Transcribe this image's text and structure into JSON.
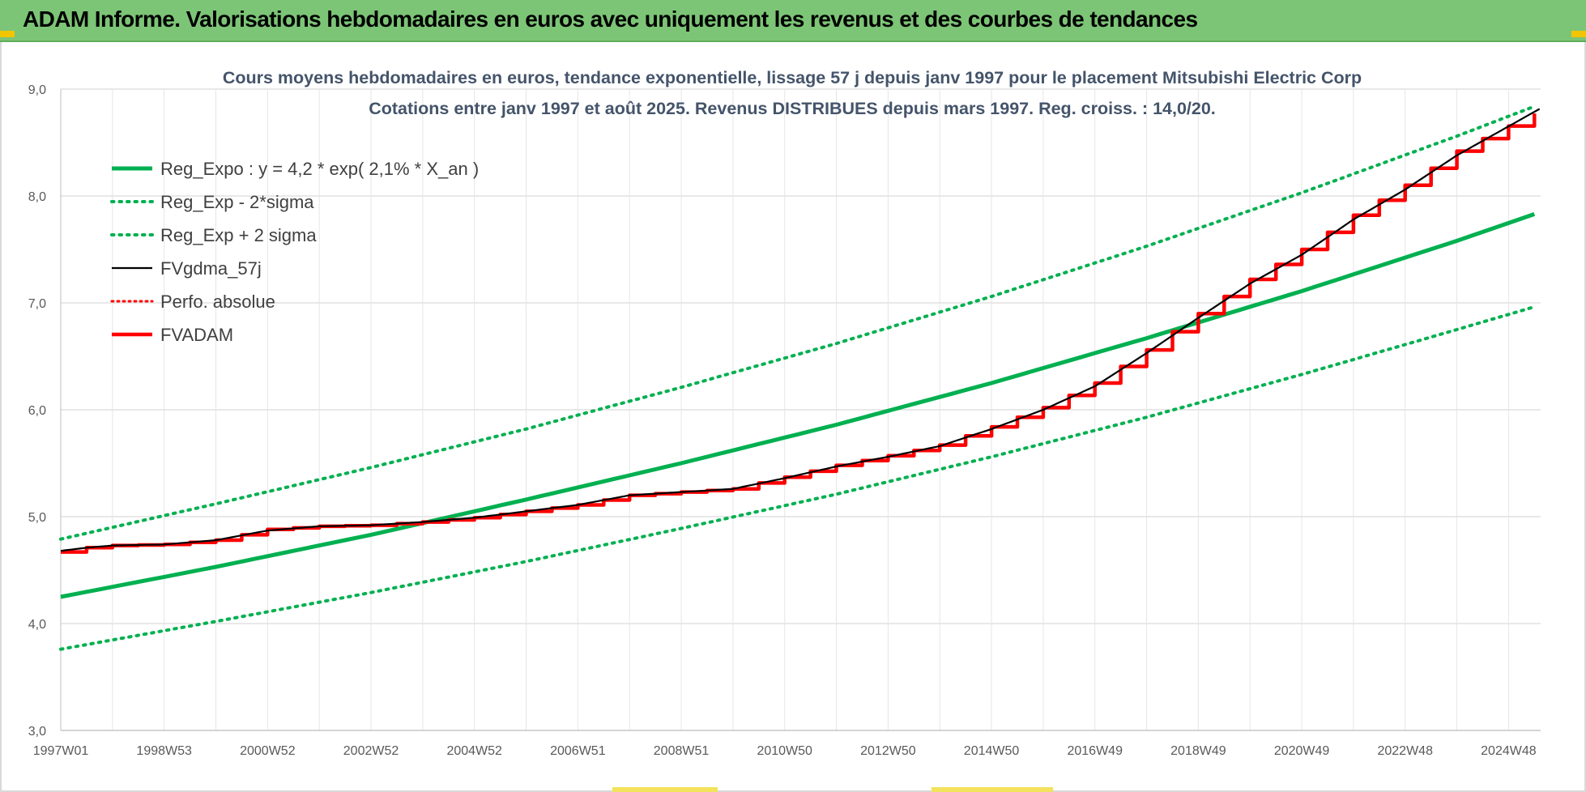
{
  "header": {
    "title": "ADAM Informe. Valorisations hebdomadaires en euros avec uniquement les revenus et des courbes de tendances"
  },
  "colors": {
    "banner": "#7cc576",
    "trend": "#00b050",
    "fv": "#000000",
    "adam": "#ff0000",
    "grid": "#d9d9d9",
    "title": "#44546a",
    "accent": "#f2c500"
  },
  "chart_data": {
    "type": "line",
    "title": "Cours moyens hebdomadaires en euros, tendance exponentielle, lissage 57 j depuis janv 1997 pour le placement Mitsubishi Electric Corp",
    "subtitle": "Cotations entre janv 1997 et août 2025. Revenus DISTRIBUES depuis mars 1997. Reg. croiss. : 14,0/20.",
    "xlabel": "",
    "ylabel": "",
    "x_range": [
      1997.0,
      2025.62
    ],
    "ylim": [
      3.0,
      9.0
    ],
    "y_ticks": [
      "3,0",
      "4,0",
      "5,0",
      "6,0",
      "7,0",
      "8,0",
      "9,0"
    ],
    "x_tick_labels": [
      "1997W01",
      "1998W53",
      "2000W52",
      "2002W52",
      "2004W52",
      "2006W51",
      "2008W51",
      "2010W50",
      "2012W50",
      "2014W50",
      "2016W49",
      "2018W49",
      "2020W49",
      "2022W48",
      "2024W48"
    ],
    "x_tick_years": [
      1997.0,
      1999.0,
      2001.0,
      2003.0,
      2005.0,
      2007.0,
      2009.0,
      2011.0,
      2013.0,
      2015.0,
      2017.0,
      2019.0,
      2021.0,
      2023.0,
      2025.0
    ],
    "grid": true,
    "legend_position": "top-left",
    "series": [
      {
        "name": "Reg_Expo : y = 4,2 * exp( 2,1% *  X_an )",
        "style": "solid-green",
        "x": [
          1997.0,
          2000.0,
          2003.0,
          2006.0,
          2009.0,
          2012.0,
          2015.0,
          2018.0,
          2021.0,
          2024.0,
          2025.62
        ],
        "values": [
          4.25,
          4.53,
          4.83,
          5.16,
          5.5,
          5.86,
          6.25,
          6.67,
          7.11,
          7.58,
          7.85
        ]
      },
      {
        "name": "Reg_Exp - 2*sigma",
        "style": "dotted-green",
        "x": [
          1997.0,
          2000.0,
          2003.0,
          2006.0,
          2009.0,
          2012.0,
          2015.0,
          2018.0,
          2021.0,
          2024.0,
          2025.62
        ],
        "values": [
          3.76,
          4.02,
          4.29,
          4.58,
          4.89,
          5.21,
          5.56,
          5.93,
          6.33,
          6.75,
          6.98
        ]
      },
      {
        "name": "Reg_Exp + 2 sigma",
        "style": "dotted-green",
        "x": [
          1997.0,
          2000.0,
          2003.0,
          2006.0,
          2009.0,
          2012.0,
          2015.0,
          2018.0,
          2021.0,
          2024.0,
          2025.62
        ],
        "values": [
          4.79,
          5.12,
          5.46,
          5.82,
          6.21,
          6.62,
          7.06,
          7.53,
          8.03,
          8.56,
          8.86
        ]
      },
      {
        "name": "FVgdma_57j",
        "style": "solid-black",
        "x": [
          1997.0,
          1997.5,
          1998.0,
          1999.0,
          2000.0,
          2001.0,
          2002.0,
          2003.0,
          2004.0,
          2005.0,
          2006.0,
          2007.0,
          2008.0,
          2009.0,
          2010.0,
          2011.0,
          2012.0,
          2013.0,
          2014.0,
          2015.0,
          2016.0,
          2017.0,
          2018.0,
          2019.0,
          2020.0,
          2021.0,
          2022.0,
          2023.0,
          2024.0,
          2025.62
        ],
        "values": [
          4.68,
          4.71,
          4.73,
          4.74,
          4.78,
          4.87,
          4.91,
          4.92,
          4.95,
          4.99,
          5.05,
          5.11,
          5.2,
          5.23,
          5.26,
          5.36,
          5.47,
          5.56,
          5.66,
          5.82,
          6.0,
          6.22,
          6.53,
          6.86,
          7.18,
          7.45,
          7.78,
          8.06,
          8.38,
          8.82
        ]
      },
      {
        "name": "Perfo. absolue",
        "style": "dotted-red",
        "x": [],
        "values": []
      },
      {
        "name": "FVADAM",
        "style": "step-red",
        "x": [
          1997.0,
          1997.5,
          1998.0,
          1999.0,
          2000.0,
          2001.0,
          2002.0,
          2003.0,
          2004.0,
          2005.0,
          2006.0,
          2007.0,
          2008.0,
          2009.0,
          2010.0,
          2011.0,
          2012.0,
          2013.0,
          2014.0,
          2015.0,
          2016.0,
          2017.0,
          2018.0,
          2019.0,
          2020.0,
          2021.0,
          2022.0,
          2023.0,
          2024.0,
          2025.62
        ],
        "values": [
          4.67,
          4.71,
          4.73,
          4.74,
          4.78,
          4.88,
          4.91,
          4.92,
          4.95,
          4.99,
          5.05,
          5.11,
          5.2,
          5.23,
          5.26,
          5.37,
          5.48,
          5.57,
          5.67,
          5.84,
          6.02,
          6.25,
          6.56,
          6.9,
          7.22,
          7.5,
          7.82,
          8.1,
          8.42,
          8.8
        ]
      }
    ]
  }
}
